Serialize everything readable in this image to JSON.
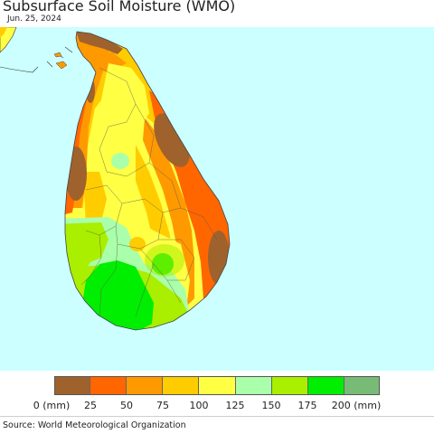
{
  "header": {
    "title": "Subsurface Soil Moisture (WMO)",
    "date": "Jun. 25, 2024"
  },
  "map": {
    "sea_color": "#ccffff",
    "land_edge_color": "#ffff66",
    "legend_units_label": "(mm)",
    "legend": {
      "colors": [
        "#a0622d",
        "#ff6600",
        "#ff9900",
        "#ffcc00",
        "#ffff44",
        "#aaffaa",
        "#aaee00",
        "#00ee00",
        "#77bb77"
      ],
      "tick_labels": [
        "0 (mm)",
        "25",
        "50",
        "75",
        "100",
        "125",
        "150",
        "175",
        "200 (mm)"
      ]
    }
  },
  "footer": {
    "source": "Source: World Meteorological Organization"
  }
}
